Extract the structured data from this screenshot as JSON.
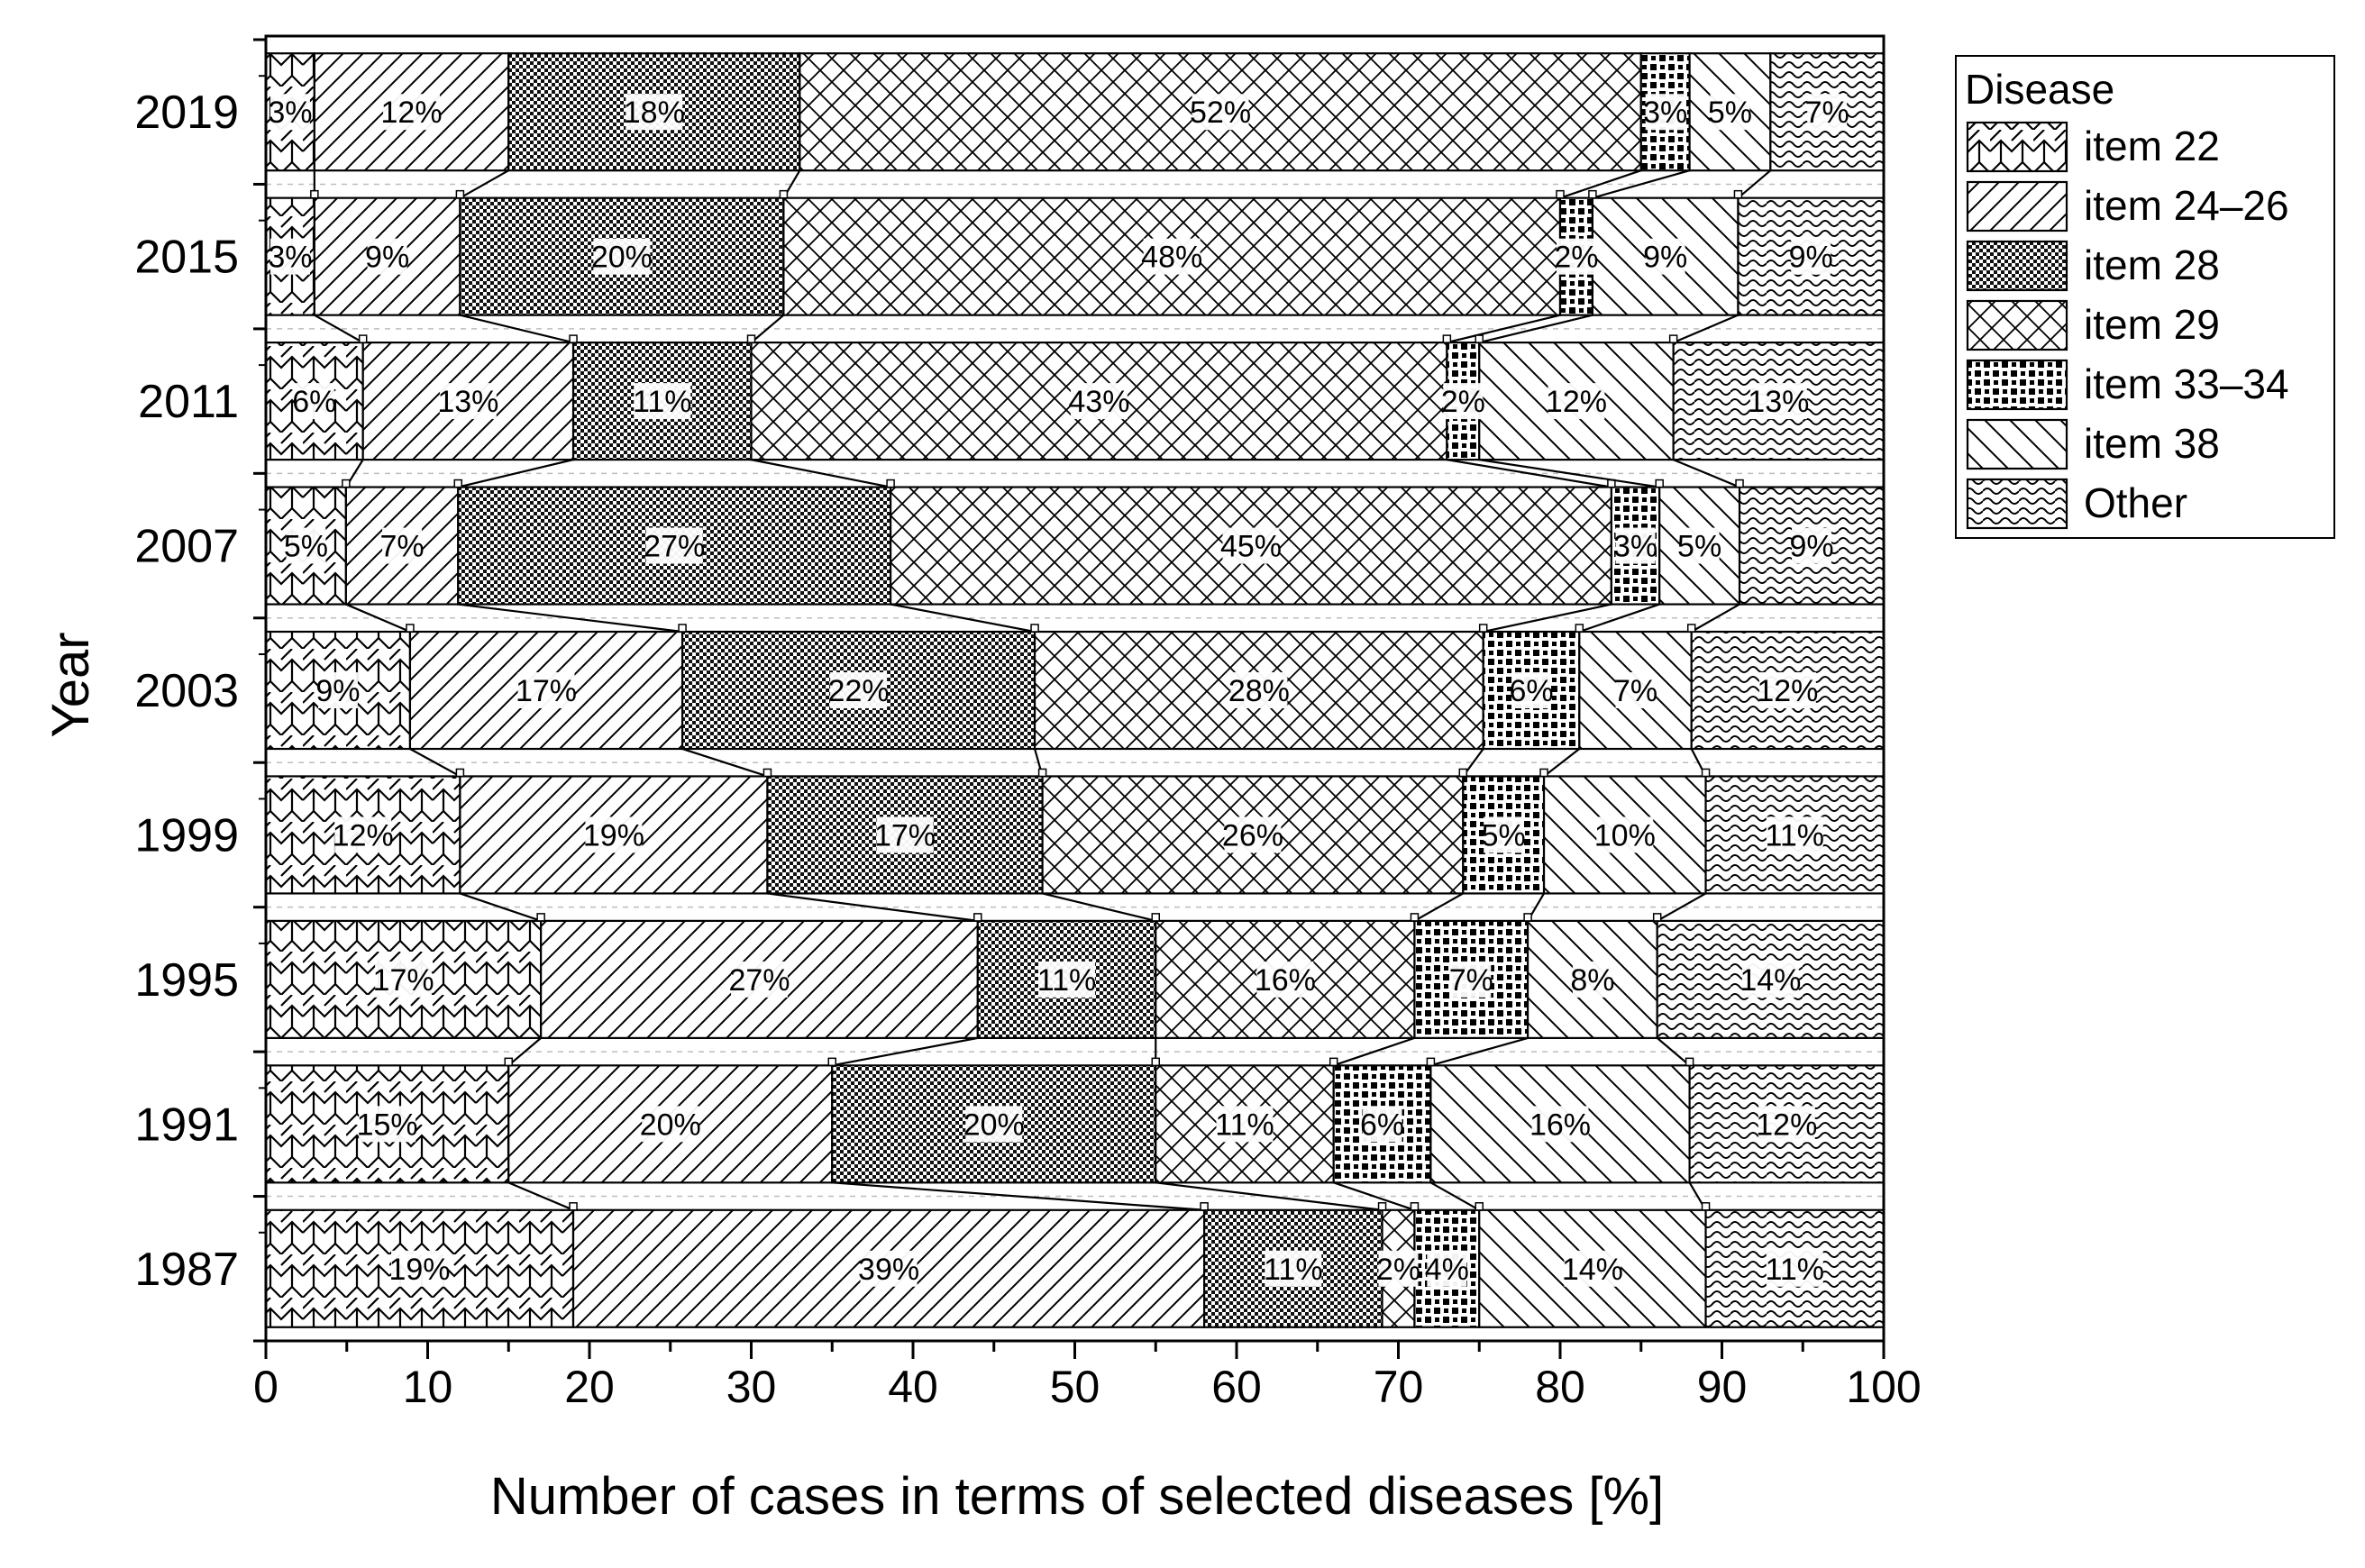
{
  "chart_data": {
    "type": "bar",
    "orientation": "horizontal",
    "stacked": true,
    "percent_stacked": true,
    "xlabel": "Number of cases in terms of selected diseases [%]",
    "ylabel": "Year",
    "xlim": [
      0,
      100
    ],
    "xticks": [
      "0",
      "10",
      "20",
      "30",
      "40",
      "50",
      "60",
      "70",
      "80",
      "90",
      "100"
    ],
    "categories": [
      "2019",
      "2015",
      "2011",
      "2007",
      "2003",
      "1999",
      "1995",
      "1991",
      "1987"
    ],
    "legend": {
      "title": "Disease",
      "position": "right"
    },
    "series": [
      {
        "name": "item 22",
        "pattern": "zigzag-crosshatch",
        "values": [
          3,
          3,
          6,
          5,
          9,
          12,
          17,
          15,
          19
        ],
        "labels": [
          "3%",
          "3%",
          "6%",
          "5%",
          "9%",
          "12%",
          "17%",
          "15%",
          "19%"
        ]
      },
      {
        "name": "item 24–26",
        "pattern": "forward-diagonal",
        "values": [
          12,
          9,
          13,
          7,
          17,
          19,
          27,
          20,
          39
        ],
        "labels": [
          "12%",
          "9%",
          "13%",
          "7%",
          "17%",
          "19%",
          "27%",
          "20%",
          "39%"
        ]
      },
      {
        "name": "item 28",
        "pattern": "fine-checker",
        "values": [
          18,
          20,
          11,
          27,
          22,
          17,
          11,
          20,
          11
        ],
        "labels": [
          "18%",
          "20%",
          "11%",
          "27%",
          "22%",
          "17%",
          "11%",
          "20%",
          "11%"
        ]
      },
      {
        "name": "item 29",
        "pattern": "crosshatch",
        "values": [
          52,
          48,
          43,
          45,
          28,
          26,
          16,
          11,
          2
        ],
        "labels": [
          "52%",
          "48%",
          "43%",
          "45%",
          "28%",
          "26%",
          "16%",
          "11%",
          "2%"
        ]
      },
      {
        "name": "item 33–34",
        "pattern": "dense-dots",
        "values": [
          3,
          2,
          2,
          3,
          6,
          5,
          7,
          6,
          4
        ],
        "labels": [
          "3%",
          "2%",
          "2%",
          "3%",
          "6%",
          "5%",
          "7%",
          "6%",
          "4%"
        ]
      },
      {
        "name": "item 38",
        "pattern": "back-diagonal",
        "values": [
          5,
          9,
          12,
          5,
          7,
          10,
          8,
          16,
          14
        ],
        "labels": [
          "5%",
          "9%",
          "12%",
          "5%",
          "7%",
          "10%",
          "8%",
          "16%",
          "14%"
        ]
      },
      {
        "name": "Other",
        "pattern": "waves",
        "values": [
          7,
          9,
          13,
          9,
          12,
          11,
          14,
          12,
          11
        ],
        "labels": [
          "7%",
          "9%",
          "13%",
          "9%",
          "12%",
          "11%",
          "14%",
          "12%",
          "11%"
        ]
      }
    ],
    "connector_lines": true
  }
}
